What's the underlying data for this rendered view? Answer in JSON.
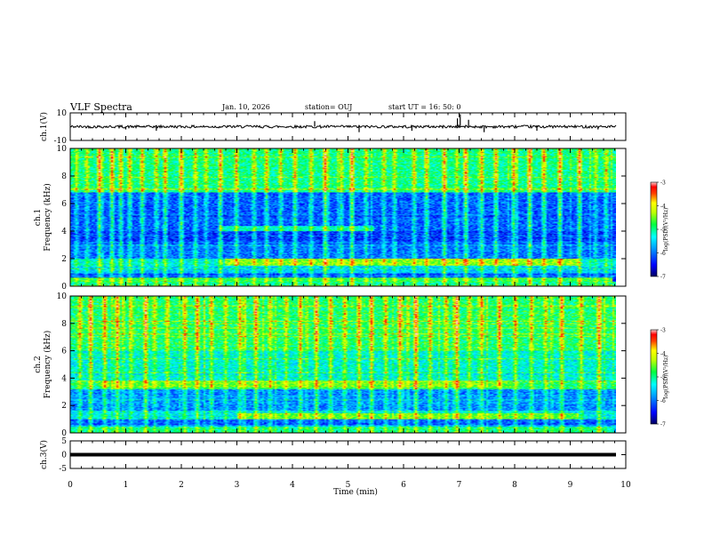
{
  "header": {
    "title": "VLF Spectra",
    "date": "Jan. 10, 2026",
    "station": "station= OUJ",
    "start": "start  UT =   16: 50: 0"
  },
  "colors": {
    "waveform": "#000000",
    "frame": "#000000"
  },
  "chart_data": [
    {
      "type": "line",
      "panel": "ch1-waveform",
      "ylabel": "ch.1(V)",
      "ylim": [
        -10,
        10
      ],
      "y_ticks": [
        "10",
        "-10"
      ],
      "xlim": [
        0,
        10
      ],
      "baseline": 0,
      "noise_band": [
        -1,
        1
      ],
      "spikes": [
        {
          "x": 1.0,
          "y": -2
        },
        {
          "x": 1.55,
          "y": -3
        },
        {
          "x": 4.4,
          "y": 4
        },
        {
          "x": 5.2,
          "y": -4
        },
        {
          "x": 6.15,
          "y": -3
        },
        {
          "x": 6.97,
          "y": 6
        },
        {
          "x": 7.02,
          "y": 9
        },
        {
          "x": 7.17,
          "y": 5
        },
        {
          "x": 7.45,
          "y": -4
        },
        {
          "x": 8.4,
          "y": -3
        },
        {
          "x": 9.5,
          "y": -2
        }
      ]
    },
    {
      "type": "heatmap",
      "panel": "ch1-spectrogram",
      "ylabel": "ch.1\nFrequency (kHz)",
      "ylim": [
        0,
        10
      ],
      "y_ticks": [
        "0",
        "2",
        "4",
        "6",
        "8",
        "10"
      ],
      "xlim": [
        0,
        9.85
      ],
      "colorbar": {
        "label": "log(PSD)(V²/Hz)",
        "range": [
          -7,
          -3
        ],
        "ticks": [
          "-7",
          "-6",
          "-5",
          "-4",
          "-3"
        ]
      },
      "band_levels_kHz_log": [
        {
          "f": [
            0.0,
            0.3
          ],
          "v": -5.0
        },
        {
          "f": [
            0.3,
            0.9
          ],
          "v": -6.2
        },
        {
          "f": [
            0.9,
            1.4
          ],
          "v": -5.6
        },
        {
          "f": [
            1.4,
            2.0
          ],
          "v": -5.3
        },
        {
          "f": [
            2.0,
            3.2
          ],
          "v": -6.0
        },
        {
          "f": [
            3.2,
            4.0
          ],
          "v": -6.3
        },
        {
          "f": [
            4.0,
            6.8
          ],
          "v": -6.1
        },
        {
          "f": [
            6.8,
            10.0
          ],
          "v": -5.0
        }
      ],
      "features": [
        {
          "f": [
            1.5,
            2.0
          ],
          "t": [
            2.8,
            9.2
          ],
          "v": -4.4
        },
        {
          "f": [
            0.3,
            0.6
          ],
          "t": [
            0.0,
            9.8
          ],
          "v": -4.8
        },
        {
          "f": [
            4.0,
            4.4
          ],
          "t": [
            2.7,
            5.5
          ],
          "v": -5.2
        }
      ],
      "bursts_t": [
        0.1,
        0.3,
        0.5,
        0.75,
        0.9,
        1.05,
        1.3,
        1.55,
        1.7,
        2.0,
        2.25,
        2.45,
        2.7,
        3.0,
        3.3,
        3.55,
        3.8,
        4.05,
        4.35,
        4.6,
        4.9,
        5.1,
        5.35,
        5.65,
        5.85,
        6.2,
        6.45,
        6.75,
        6.97,
        7.15,
        7.45,
        7.7,
        8.0,
        8.3,
        8.55,
        8.85,
        9.2,
        9.5,
        9.7
      ]
    },
    {
      "type": "heatmap",
      "panel": "ch2-spectrogram",
      "ylabel": "ch.2\nFrequency (kHz)",
      "ylim": [
        0,
        10
      ],
      "y_ticks": [
        "0",
        "2",
        "4",
        "6",
        "8",
        "10"
      ],
      "xlim": [
        0,
        9.85
      ],
      "colorbar": {
        "label": "log(PSD)(V²/Hz)",
        "range": [
          -7,
          -3
        ],
        "ticks": [
          "-7",
          "-6",
          "-5",
          "-4",
          "-3"
        ]
      },
      "band_levels_kHz_log": [
        {
          "f": [
            0.0,
            0.5
          ],
          "v": -5.6
        },
        {
          "f": [
            0.5,
            1.0
          ],
          "v": -6.1
        },
        {
          "f": [
            1.0,
            1.6
          ],
          "v": -5.4
        },
        {
          "f": [
            1.6,
            3.2
          ],
          "v": -5.9
        },
        {
          "f": [
            3.2,
            3.8
          ],
          "v": -5.0
        },
        {
          "f": [
            3.8,
            6.0
          ],
          "v": -5.3
        },
        {
          "f": [
            6.0,
            10.0
          ],
          "v": -4.9
        }
      ],
      "features": [
        {
          "f": [
            3.3,
            3.8
          ],
          "t": [
            0.5,
            8.0
          ],
          "v": -4.6
        },
        {
          "f": [
            1.0,
            1.4
          ],
          "t": [
            3.0,
            9.2
          ],
          "v": -4.6
        },
        {
          "f": [
            0.0,
            0.4
          ],
          "t": [
            0.0,
            9.8
          ],
          "v": -5.0
        }
      ],
      "bursts_t": [
        0.15,
        0.35,
        0.6,
        0.85,
        1.1,
        1.35,
        1.5,
        1.75,
        2.05,
        2.3,
        2.55,
        2.8,
        3.05,
        3.35,
        3.6,
        3.9,
        4.15,
        4.45,
        4.7,
        4.95,
        5.2,
        5.45,
        5.7,
        5.95,
        6.25,
        6.5,
        6.8,
        6.97,
        7.2,
        7.45,
        7.75,
        8.05,
        8.35,
        8.6,
        8.9,
        9.25,
        9.55
      ]
    },
    {
      "type": "line",
      "panel": "ch3-waveform",
      "ylabel": "ch.3(V)",
      "ylim": [
        -5,
        5
      ],
      "y_ticks": [
        "5",
        "0",
        "-5"
      ],
      "xlim": [
        0,
        9.85
      ],
      "constant_value": 0,
      "xlabel": "Time (min)",
      "x_ticks": [
        "0",
        "1",
        "2",
        "3",
        "4",
        "5",
        "6",
        "7",
        "8",
        "9",
        "10"
      ]
    }
  ]
}
